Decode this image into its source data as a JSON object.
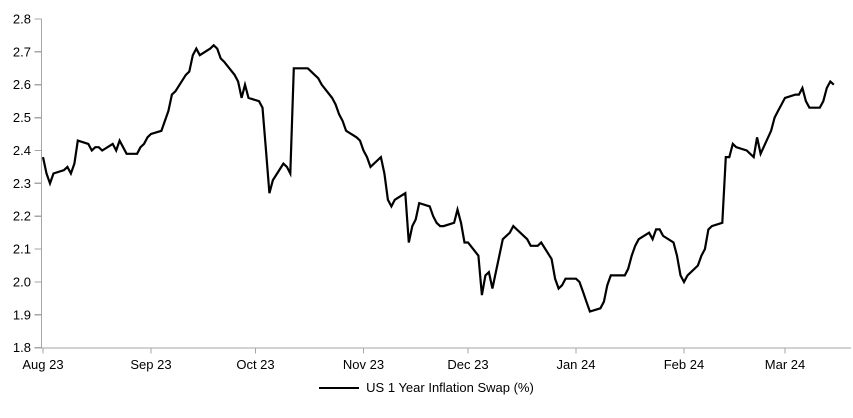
{
  "chart": {
    "legend_label": "US 1 Year Inflation Swap (%)",
    "line_color": "#000000",
    "axis_color": "#a6a6a6",
    "y_axis": {
      "ticks": [
        "2.8",
        "2.7",
        "2.6",
        "2.5",
        "2.4",
        "2.3",
        "2.2",
        "2.1",
        "2.0",
        "1.9",
        "1.8"
      ]
    },
    "x_axis": {
      "ticks": [
        {
          "label": "Aug 23",
          "date": "2023-08-01"
        },
        {
          "label": "Sep 23",
          "date": "2023-09-01"
        },
        {
          "label": "Oct 23",
          "date": "2023-10-01"
        },
        {
          "label": "Nov 23",
          "date": "2023-11-01"
        },
        {
          "label": "Dec 23",
          "date": "2023-12-01"
        },
        {
          "label": "Jan 24",
          "date": "2024-01-01"
        },
        {
          "label": "Feb 24",
          "date": "2024-02-01"
        },
        {
          "label": "Mar 24",
          "date": "2024-03-01"
        }
      ]
    }
  },
  "chart_data": {
    "type": "line",
    "title": "",
    "xlabel": "",
    "ylabel": "",
    "ylim": [
      1.8,
      2.8
    ],
    "xlim": [
      "2023-08-01",
      "2024-03-16"
    ],
    "grid": false,
    "legend_position": "bottom-center",
    "series": [
      {
        "name": "US 1 Year Inflation Swap (%)",
        "color": "#000000",
        "dates": [
          "2023-08-01",
          "2023-08-02",
          "2023-08-03",
          "2023-08-04",
          "2023-08-07",
          "2023-08-08",
          "2023-08-09",
          "2023-08-10",
          "2023-08-11",
          "2023-08-14",
          "2023-08-15",
          "2023-08-16",
          "2023-08-17",
          "2023-08-18",
          "2023-08-21",
          "2023-08-22",
          "2023-08-23",
          "2023-08-24",
          "2023-08-25",
          "2023-08-28",
          "2023-08-29",
          "2023-08-30",
          "2023-08-31",
          "2023-09-01",
          "2023-09-04",
          "2023-09-05",
          "2023-09-06",
          "2023-09-07",
          "2023-09-08",
          "2023-09-11",
          "2023-09-12",
          "2023-09-13",
          "2023-09-14",
          "2023-09-15",
          "2023-09-18",
          "2023-09-19",
          "2023-09-20",
          "2023-09-21",
          "2023-09-22",
          "2023-09-25",
          "2023-09-26",
          "2023-09-27",
          "2023-09-28",
          "2023-09-29",
          "2023-10-02",
          "2023-10-03",
          "2023-10-04",
          "2023-10-05",
          "2023-10-06",
          "2023-10-09",
          "2023-10-10",
          "2023-10-11",
          "2023-10-12",
          "2023-10-13",
          "2023-10-16",
          "2023-10-17",
          "2023-10-18",
          "2023-10-19",
          "2023-10-20",
          "2023-10-23",
          "2023-10-24",
          "2023-10-25",
          "2023-10-26",
          "2023-10-27",
          "2023-10-30",
          "2023-10-31",
          "2023-11-01",
          "2023-11-02",
          "2023-11-03",
          "2023-11-06",
          "2023-11-07",
          "2023-11-08",
          "2023-11-09",
          "2023-11-10",
          "2023-11-13",
          "2023-11-14",
          "2023-11-15",
          "2023-11-16",
          "2023-11-17",
          "2023-11-20",
          "2023-11-21",
          "2023-11-22",
          "2023-11-23",
          "2023-11-24",
          "2023-11-27",
          "2023-11-28",
          "2023-11-29",
          "2023-11-30",
          "2023-12-01",
          "2023-12-04",
          "2023-12-05",
          "2023-12-06",
          "2023-12-07",
          "2023-12-08",
          "2023-12-11",
          "2023-12-12",
          "2023-12-13",
          "2023-12-14",
          "2023-12-15",
          "2023-12-18",
          "2023-12-19",
          "2023-12-20",
          "2023-12-21",
          "2023-12-22",
          "2023-12-25",
          "2023-12-26",
          "2023-12-27",
          "2023-12-28",
          "2023-12-29",
          "2024-01-01",
          "2024-01-02",
          "2024-01-03",
          "2024-01-04",
          "2024-01-05",
          "2024-01-08",
          "2024-01-09",
          "2024-01-10",
          "2024-01-11",
          "2024-01-12",
          "2024-01-15",
          "2024-01-16",
          "2024-01-17",
          "2024-01-18",
          "2024-01-19",
          "2024-01-22",
          "2024-01-23",
          "2024-01-24",
          "2024-01-25",
          "2024-01-26",
          "2024-01-29",
          "2024-01-30",
          "2024-01-31",
          "2024-02-01",
          "2024-02-02",
          "2024-02-05",
          "2024-02-06",
          "2024-02-07",
          "2024-02-08",
          "2024-02-09",
          "2024-02-12",
          "2024-02-13",
          "2024-02-14",
          "2024-02-15",
          "2024-02-16",
          "2024-02-19",
          "2024-02-20",
          "2024-02-21",
          "2024-02-22",
          "2024-02-23",
          "2024-02-26",
          "2024-02-27",
          "2024-02-28",
          "2024-02-29",
          "2024-03-01",
          "2024-03-04",
          "2024-03-05",
          "2024-03-06",
          "2024-03-07",
          "2024-03-08",
          "2024-03-11",
          "2024-03-12",
          "2024-03-13",
          "2024-03-14",
          "2024-03-15"
        ],
        "values": [
          2.38,
          2.33,
          2.3,
          2.33,
          2.34,
          2.35,
          2.33,
          2.36,
          2.43,
          2.42,
          2.4,
          2.41,
          2.41,
          2.4,
          2.42,
          2.4,
          2.43,
          2.41,
          2.39,
          2.39,
          2.41,
          2.42,
          2.44,
          2.45,
          2.46,
          2.49,
          2.52,
          2.57,
          2.58,
          2.63,
          2.64,
          2.69,
          2.71,
          2.69,
          2.71,
          2.72,
          2.71,
          2.68,
          2.67,
          2.63,
          2.61,
          2.56,
          2.6,
          2.56,
          2.55,
          2.53,
          2.4,
          2.27,
          2.31,
          2.36,
          2.35,
          2.33,
          2.65,
          2.65,
          2.65,
          2.64,
          2.63,
          2.62,
          2.6,
          2.56,
          2.54,
          2.51,
          2.49,
          2.46,
          2.44,
          2.43,
          2.4,
          2.38,
          2.35,
          2.38,
          2.33,
          2.25,
          2.23,
          2.25,
          2.27,
          2.12,
          2.17,
          2.19,
          2.24,
          2.23,
          2.2,
          2.18,
          2.17,
          2.17,
          2.18,
          2.22,
          2.18,
          2.12,
          2.12,
          2.08,
          1.96,
          2.02,
          2.03,
          1.98,
          2.13,
          2.14,
          2.15,
          2.17,
          2.16,
          2.13,
          2.11,
          2.11,
          2.11,
          2.12,
          2.07,
          2.01,
          1.98,
          1.99,
          2.01,
          2.01,
          2.0,
          1.97,
          1.94,
          1.91,
          1.92,
          1.94,
          1.99,
          2.02,
          2.02,
          2.02,
          2.04,
          2.08,
          2.11,
          2.13,
          2.15,
          2.13,
          2.16,
          2.16,
          2.14,
          2.12,
          2.08,
          2.02,
          2.0,
          2.02,
          2.05,
          2.08,
          2.1,
          2.16,
          2.17,
          2.18,
          2.38,
          2.38,
          2.42,
          2.41,
          2.4,
          2.39,
          2.38,
          2.44,
          2.39,
          2.46,
          2.5,
          2.52,
          2.54,
          2.56,
          2.57,
          2.57,
          2.59,
          2.55,
          2.53,
          2.53,
          2.55,
          2.59,
          2.61,
          2.6
        ]
      }
    ]
  }
}
